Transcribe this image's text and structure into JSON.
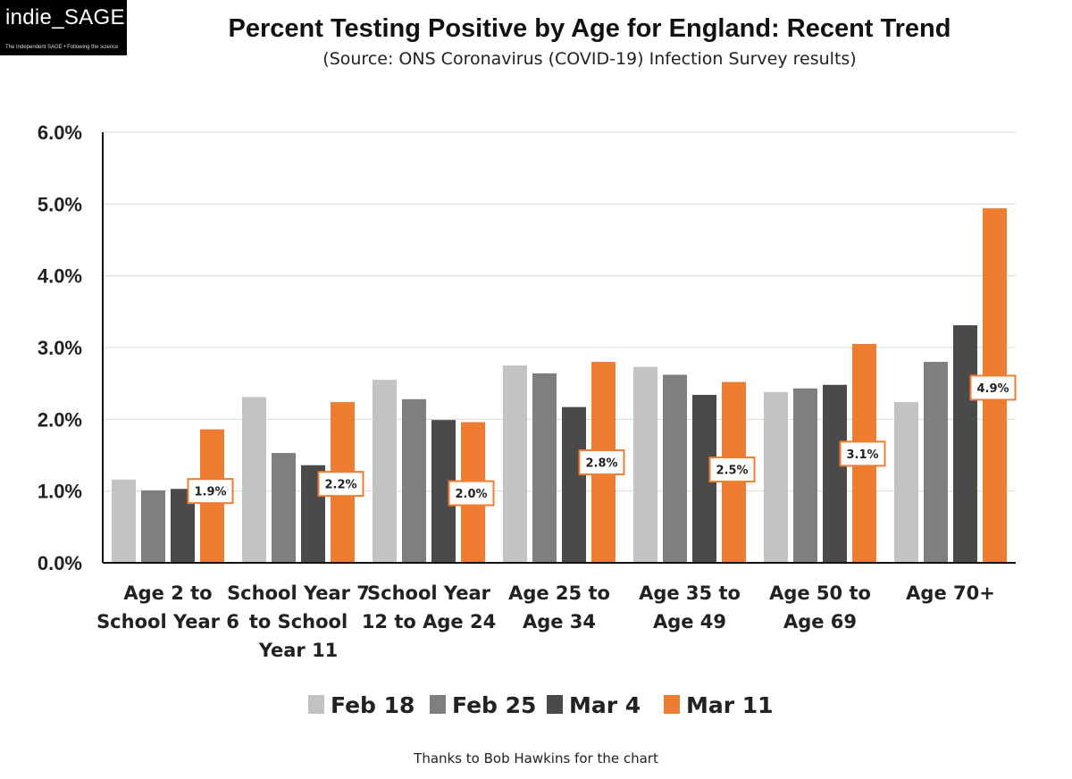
{
  "logo": {
    "text": "indie_SAGE",
    "tagline": "The Independent SAGE • Following the science"
  },
  "footer": {
    "credit": "Thanks to Bob Hawkins for the chart"
  },
  "colors": {
    "Feb 18": "#c3c3c3",
    "Feb 25": "#7f7f7f",
    "Mar 4": "#4a4a4a",
    "Mar 11": "#ef7d31",
    "label_border": "#ef7d31"
  },
  "chart_data": {
    "type": "bar",
    "title": "Percent Testing Positive by Age for England: Recent Trend",
    "subtitle": "(Source: ONS Coronavirus (COVID-19) Infection Survey results)",
    "xlabel": "",
    "ylabel": "",
    "ylim": [
      0,
      6
    ],
    "yticks": [
      "0.0%",
      "1.0%",
      "2.0%",
      "3.0%",
      "4.0%",
      "5.0%",
      "6.0%"
    ],
    "grid": true,
    "legend_position": "bottom",
    "categories": [
      [
        "Age 2 to",
        "School Year 6"
      ],
      [
        "School Year 7",
        "to School",
        "Year 11"
      ],
      [
        "School Year",
        "12 to Age 24"
      ],
      [
        "Age 25 to",
        "Age 34"
      ],
      [
        "Age 35 to",
        "Age 49"
      ],
      [
        "Age 50 to",
        "Age 69"
      ],
      [
        "Age 70+"
      ]
    ],
    "series": [
      {
        "name": "Feb 18",
        "values": [
          1.16,
          2.31,
          2.55,
          2.75,
          2.73,
          2.38,
          2.24
        ]
      },
      {
        "name": "Feb 25",
        "values": [
          1.01,
          1.53,
          2.28,
          2.64,
          2.62,
          2.43,
          2.8
        ]
      },
      {
        "name": "Mar 4",
        "values": [
          1.03,
          1.36,
          1.99,
          2.17,
          2.34,
          2.48,
          3.31
        ]
      },
      {
        "name": "Mar 11",
        "values": [
          1.86,
          2.24,
          1.96,
          2.8,
          2.52,
          3.05,
          4.94
        ]
      }
    ],
    "data_labels": [
      "1.9%",
      "2.2%",
      "2.0%",
      "2.8%",
      "2.5%",
      "3.1%",
      "4.9%"
    ],
    "data_label_values": [
      1.0,
      1.1,
      0.97,
      1.4,
      1.3,
      1.52,
      2.44
    ]
  }
}
